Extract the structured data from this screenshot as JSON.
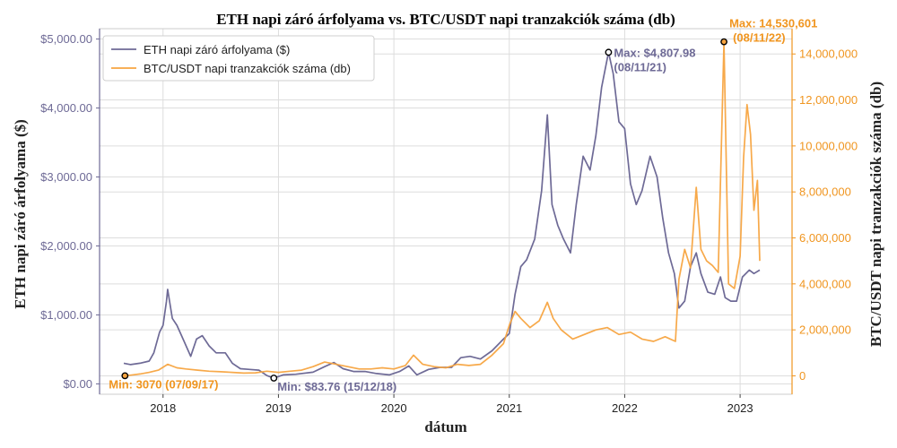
{
  "chart_data": {
    "type": "line",
    "title": "ETH napi záró árfolyama vs. BTC/USDT napi tranzakciók száma (db)",
    "xlabel": "dátum",
    "ylabel_left": "ETH napi záró árfolyama ($)",
    "ylabel_right": "BTC/USDT napi tranzakciók száma (db)",
    "xlim": [
      2017.45,
      2023.45
    ],
    "ylim_left": [
      -150,
      5150
    ],
    "ylim_right": [
      -800000,
      15100000
    ],
    "x_ticks": [
      {
        "value": 2018,
        "label": "2018"
      },
      {
        "value": 2019,
        "label": "2019"
      },
      {
        "value": 2020,
        "label": "2020"
      },
      {
        "value": 2021,
        "label": "2021"
      },
      {
        "value": 2022,
        "label": "2022"
      },
      {
        "value": 2023,
        "label": "2023"
      }
    ],
    "y_ticks_left": [
      {
        "value": 0,
        "label": "$0.00"
      },
      {
        "value": 1000,
        "label": "$1,000.00"
      },
      {
        "value": 2000,
        "label": "$2,000.00"
      },
      {
        "value": 3000,
        "label": "$3,000.00"
      },
      {
        "value": 4000,
        "label": "$4,000.00"
      },
      {
        "value": 5000,
        "label": "$5,000.00"
      }
    ],
    "y_ticks_right": [
      {
        "value": 0,
        "label": "0"
      },
      {
        "value": 2000000,
        "label": "2,000,000"
      },
      {
        "value": 4000000,
        "label": "4,000,000"
      },
      {
        "value": 6000000,
        "label": "6,000,000"
      },
      {
        "value": 8000000,
        "label": "8,000,000"
      },
      {
        "value": 10000000,
        "label": "10,000,000"
      },
      {
        "value": 12000000,
        "label": "12,000,000"
      },
      {
        "value": 14000000,
        "label": "14,000,000"
      }
    ],
    "grid": true,
    "legend_position": "top-left",
    "series": [
      {
        "name": "ETH napi záró árfolyama ($)",
        "axis": "left",
        "color": "#6e6a96",
        "points": [
          [
            2017.66,
            300
          ],
          [
            2017.72,
            280
          ],
          [
            2017.8,
            300
          ],
          [
            2017.88,
            330
          ],
          [
            2017.92,
            450
          ],
          [
            2017.97,
            750
          ],
          [
            2018.0,
            850
          ],
          [
            2018.03,
            1200
          ],
          [
            2018.04,
            1370
          ],
          [
            2018.08,
            950
          ],
          [
            2018.12,
            850
          ],
          [
            2018.16,
            700
          ],
          [
            2018.2,
            550
          ],
          [
            2018.24,
            400
          ],
          [
            2018.29,
            650
          ],
          [
            2018.34,
            700
          ],
          [
            2018.4,
            550
          ],
          [
            2018.46,
            450
          ],
          [
            2018.54,
            450
          ],
          [
            2018.6,
            300
          ],
          [
            2018.67,
            220
          ],
          [
            2018.75,
            210
          ],
          [
            2018.83,
            200
          ],
          [
            2018.9,
            120
          ],
          [
            2018.96,
            84
          ],
          [
            2019.04,
            130
          ],
          [
            2019.15,
            140
          ],
          [
            2019.3,
            170
          ],
          [
            2019.4,
            250
          ],
          [
            2019.48,
            310
          ],
          [
            2019.56,
            220
          ],
          [
            2019.65,
            180
          ],
          [
            2019.75,
            180
          ],
          [
            2019.85,
            150
          ],
          [
            2019.96,
            130
          ],
          [
            2020.05,
            180
          ],
          [
            2020.13,
            260
          ],
          [
            2020.2,
            130
          ],
          [
            2020.3,
            210
          ],
          [
            2020.4,
            240
          ],
          [
            2020.5,
            240
          ],
          [
            2020.58,
            380
          ],
          [
            2020.66,
            400
          ],
          [
            2020.75,
            360
          ],
          [
            2020.85,
            480
          ],
          [
            2020.95,
            650
          ],
          [
            2021.0,
            730
          ],
          [
            2021.05,
            1300
          ],
          [
            2021.1,
            1700
          ],
          [
            2021.15,
            1800
          ],
          [
            2021.22,
            2100
          ],
          [
            2021.28,
            2800
          ],
          [
            2021.33,
            3900
          ],
          [
            2021.37,
            2600
          ],
          [
            2021.42,
            2300
          ],
          [
            2021.47,
            2100
          ],
          [
            2021.53,
            1900
          ],
          [
            2021.58,
            2600
          ],
          [
            2021.64,
            3300
          ],
          [
            2021.7,
            3100
          ],
          [
            2021.75,
            3600
          ],
          [
            2021.8,
            4300
          ],
          [
            2021.86,
            4808
          ],
          [
            2021.9,
            4500
          ],
          [
            2021.95,
            3800
          ],
          [
            2022.0,
            3700
          ],
          [
            2022.05,
            2900
          ],
          [
            2022.1,
            2600
          ],
          [
            2022.15,
            2800
          ],
          [
            2022.22,
            3300
          ],
          [
            2022.28,
            3000
          ],
          [
            2022.33,
            2400
          ],
          [
            2022.38,
            1900
          ],
          [
            2022.43,
            1600
          ],
          [
            2022.47,
            1100
          ],
          [
            2022.52,
            1200
          ],
          [
            2022.57,
            1700
          ],
          [
            2022.62,
            1900
          ],
          [
            2022.66,
            1600
          ],
          [
            2022.72,
            1330
          ],
          [
            2022.78,
            1300
          ],
          [
            2022.83,
            1550
          ],
          [
            2022.87,
            1250
          ],
          [
            2022.92,
            1200
          ],
          [
            2022.97,
            1200
          ],
          [
            2023.02,
            1550
          ],
          [
            2023.08,
            1650
          ],
          [
            2023.12,
            1600
          ],
          [
            2023.17,
            1650
          ]
        ]
      },
      {
        "name": "BTC/USDT napi tranzakciók száma (db)",
        "axis": "right",
        "color": "#f7a440",
        "points": [
          [
            2017.67,
            3070
          ],
          [
            2017.72,
            30000
          ],
          [
            2017.8,
            80000
          ],
          [
            2017.88,
            150000
          ],
          [
            2017.96,
            250000
          ],
          [
            2018.04,
            500000
          ],
          [
            2018.12,
            350000
          ],
          [
            2018.2,
            300000
          ],
          [
            2018.3,
            250000
          ],
          [
            2018.4,
            200000
          ],
          [
            2018.5,
            180000
          ],
          [
            2018.6,
            150000
          ],
          [
            2018.7,
            120000
          ],
          [
            2018.8,
            130000
          ],
          [
            2018.9,
            200000
          ],
          [
            2019.0,
            150000
          ],
          [
            2019.1,
            200000
          ],
          [
            2019.2,
            250000
          ],
          [
            2019.3,
            400000
          ],
          [
            2019.4,
            600000
          ],
          [
            2019.5,
            500000
          ],
          [
            2019.6,
            400000
          ],
          [
            2019.7,
            300000
          ],
          [
            2019.8,
            300000
          ],
          [
            2019.9,
            350000
          ],
          [
            2020.0,
            300000
          ],
          [
            2020.1,
            450000
          ],
          [
            2020.17,
            900000
          ],
          [
            2020.25,
            500000
          ],
          [
            2020.35,
            400000
          ],
          [
            2020.45,
            350000
          ],
          [
            2020.55,
            500000
          ],
          [
            2020.65,
            450000
          ],
          [
            2020.75,
            500000
          ],
          [
            2020.85,
            900000
          ],
          [
            2020.95,
            1400000
          ],
          [
            2021.0,
            2200000
          ],
          [
            2021.05,
            2800000
          ],
          [
            2021.1,
            2500000
          ],
          [
            2021.18,
            2100000
          ],
          [
            2021.26,
            2400000
          ],
          [
            2021.33,
            3200000
          ],
          [
            2021.38,
            2500000
          ],
          [
            2021.45,
            2000000
          ],
          [
            2021.55,
            1600000
          ],
          [
            2021.65,
            1800000
          ],
          [
            2021.75,
            2000000
          ],
          [
            2021.85,
            2100000
          ],
          [
            2021.95,
            1800000
          ],
          [
            2022.05,
            1900000
          ],
          [
            2022.15,
            1600000
          ],
          [
            2022.25,
            1500000
          ],
          [
            2022.35,
            1700000
          ],
          [
            2022.44,
            1500000
          ],
          [
            2022.47,
            4200000
          ],
          [
            2022.52,
            5500000
          ],
          [
            2022.57,
            4700000
          ],
          [
            2022.62,
            8200000
          ],
          [
            2022.66,
            5500000
          ],
          [
            2022.71,
            5000000
          ],
          [
            2022.76,
            4800000
          ],
          [
            2022.81,
            4500000
          ],
          [
            2022.86,
            14530601
          ],
          [
            2022.9,
            4000000
          ],
          [
            2022.95,
            3800000
          ],
          [
            2023.0,
            5200000
          ],
          [
            2023.03,
            9500000
          ],
          [
            2023.06,
            11800000
          ],
          [
            2023.09,
            10500000
          ],
          [
            2023.12,
            7200000
          ],
          [
            2023.15,
            8500000
          ],
          [
            2023.17,
            5000000
          ]
        ]
      }
    ],
    "annotations": [
      {
        "series": "eth",
        "x": 2021.86,
        "y": 4807.98,
        "label": "Max: $4,807.98",
        "label2": "(08/11/21)"
      },
      {
        "series": "eth",
        "x": 2018.96,
        "y": 83.76,
        "label": "Min: $83.76 (15/12/18)"
      },
      {
        "series": "btc",
        "x": 2022.86,
        "y": 14530601,
        "label": "Max: 14,530,601",
        "label2": "(08/11/22)"
      },
      {
        "series": "btc",
        "x": 2017.67,
        "y": 3070,
        "label": "Min: 3070 (07/09/17)"
      }
    ]
  }
}
